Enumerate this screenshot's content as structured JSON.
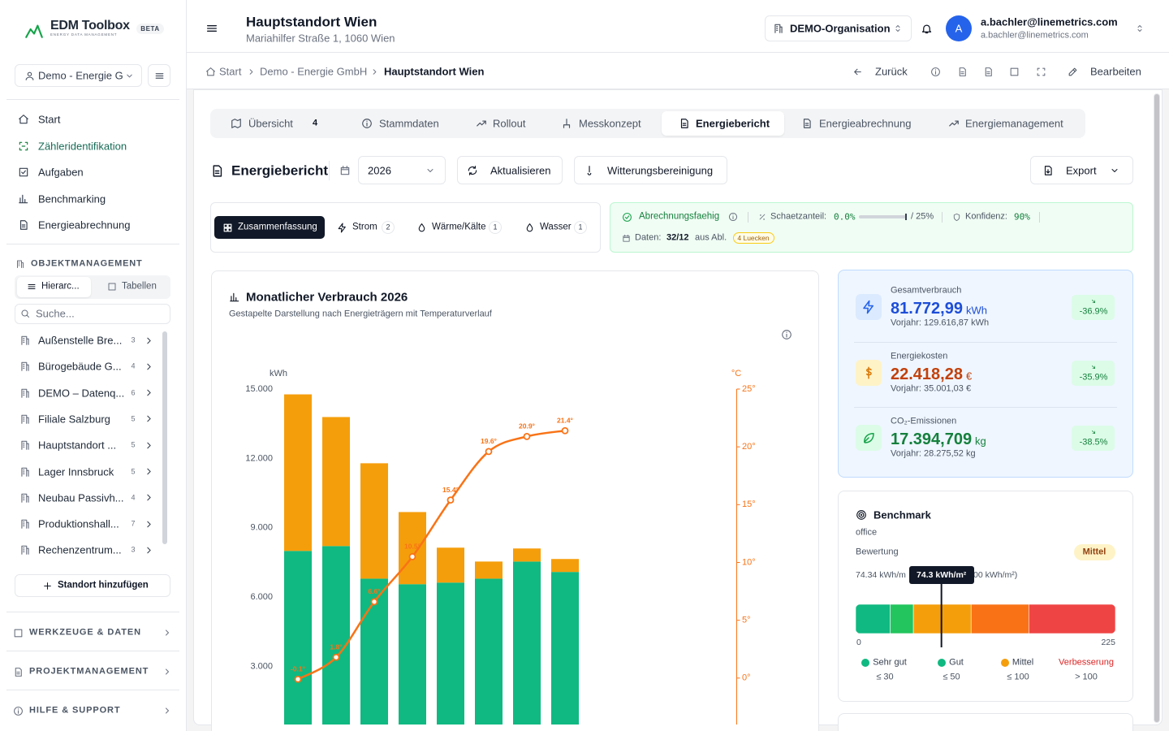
{
  "sidebar": {
    "logo": "EDM Toolbox",
    "logo_sub": "ENERGY DATA MANAGEMENT",
    "badge": "BETA",
    "org_select": "Demo - Energie G",
    "nav": [
      "Start",
      "Zähleridentifikation",
      "Aufgaben",
      "Benchmarking",
      "Energieabrechnung"
    ],
    "objekt_heading": "OBJEKTMANAGEMENT",
    "view_tabs": [
      "Hierarc...",
      "Tabellen"
    ],
    "search_placeholder": "Suche...",
    "sites": [
      {
        "name": "Außenstelle Bre...",
        "count": 3
      },
      {
        "name": "Bürogebäude G...",
        "count": 4
      },
      {
        "name": "DEMO – Datenq...",
        "count": 6
      },
      {
        "name": "Filiale Salzburg",
        "count": 5
      },
      {
        "name": "Hauptstandort ...",
        "count": 5
      },
      {
        "name": "Lager Innsbruck",
        "count": 5
      },
      {
        "name": "Neubau Passivh...",
        "count": 4
      },
      {
        "name": "Produktionshall...",
        "count": 7
      },
      {
        "name": "Rechenzentrum...",
        "count": 3
      }
    ],
    "add_site": "Standort hinzufügen",
    "sections": [
      "WERKZEUGE & DATEN",
      "PROJEKTMANAGEMENT",
      "HILFE & SUPPORT"
    ]
  },
  "header": {
    "title": "Hauptstandort Wien",
    "address": "Mariahilfer Straße 1, 1060 Wien",
    "org": "DEMO-Organisation",
    "avatar": "A",
    "user_name": "a.bachler@linemetrics.com",
    "user_email": "a.bachler@linemetrics.com"
  },
  "breadcrumb": [
    "Start",
    "Demo - Energie GmbH",
    "Hauptstandort Wien"
  ],
  "actions": {
    "back": "Zurück",
    "edit": "Bearbeiten"
  },
  "tabs": [
    {
      "label": "Übersicht",
      "count": 4
    },
    {
      "label": "Stammdaten"
    },
    {
      "label": "Rollout"
    },
    {
      "label": "Messkonzept"
    },
    {
      "label": "Energiebericht"
    },
    {
      "label": "Energieabrechnung"
    },
    {
      "label": "Energiemanagement"
    }
  ],
  "report": {
    "title": "Energiebericht",
    "year": "2026",
    "refresh": "Aktualisieren",
    "weather": "Witterungsbereinigung",
    "export": "Export"
  },
  "filters": [
    {
      "label": "Zusammenfassung"
    },
    {
      "label": "Strom",
      "count": 2
    },
    {
      "label": "Wärme/Kälte",
      "count": 1
    },
    {
      "label": "Wasser",
      "count": 1
    }
  ],
  "status": {
    "billing": "Abrechnungsfaehig",
    "estimate_label": "Schaetzanteil:",
    "estimate": "0.0%",
    "estimate_max": "/ 25%",
    "confidence_label": "Konfidenz:",
    "confidence": "90%",
    "data_label": "Daten:",
    "data_value": "32/12",
    "data_suffix": "aus Abl.",
    "gaps": "4 Luecken"
  },
  "chart_data": {
    "type": "bar",
    "title": "Monatlicher Verbrauch 2026",
    "subtitle": "Gestapelte Darstellung nach Energieträgern mit Temperaturverlauf",
    "y_label": "kWh",
    "y2_label": "°C",
    "stacked": true,
    "grid": false,
    "categories": [
      null,
      null,
      null,
      null,
      null,
      null,
      null,
      null,
      null,
      null,
      null,
      null
    ],
    "series": [
      {
        "color": "#10b981",
        "values": [
          8000,
          8210,
          6800,
          6560,
          6630,
          6800,
          7540,
          7090,
          null,
          null,
          null,
          null
        ]
      },
      {
        "color": "#f59e0b",
        "values": [
          6770,
          5580,
          4990,
          3120,
          1510,
          740,
          565,
          560,
          null,
          null,
          null,
          null
        ]
      },
      {
        "type": "line",
        "axis": "y2",
        "color": "#f97316",
        "values": [
          -0.1,
          1.8,
          6.6,
          10.5,
          15.4,
          19.6,
          20.9,
          21.4,
          null,
          null,
          null,
          null
        ],
        "value_labels": [
          "-0.1°",
          "1.8°",
          "6.6°",
          "10.5°",
          "15.4°",
          "19.6°",
          "20.9°",
          "21.4°",
          null,
          null,
          null,
          null
        ]
      }
    ],
    "ylim": [
      0,
      15000
    ],
    "yticks": [
      {
        "value": 3000,
        "label": "3.000"
      },
      {
        "value": 6000,
        "label": "6.000"
      },
      {
        "value": 9000,
        "label": "9.000"
      },
      {
        "value": 12000,
        "label": "12.000"
      },
      {
        "value": 15000,
        "label": "15.000"
      }
    ],
    "y2lim": [
      -5,
      25
    ],
    "y2ticks": [
      {
        "value": 0,
        "label": "0°"
      },
      {
        "value": 5,
        "label": "5°"
      },
      {
        "value": 10,
        "label": "10°"
      },
      {
        "value": 15,
        "label": "15°"
      },
      {
        "value": 20,
        "label": "20°"
      },
      {
        "value": 25,
        "label": "25°"
      }
    ]
  },
  "kpis": [
    {
      "label": "Gesamtverbrauch",
      "value": "81.772,99",
      "unit": "kWh",
      "prev": "Vorjahr: 129.616,87 kWh",
      "change": "-36.9%",
      "color": "#1d4ed8"
    },
    {
      "label": "Energiekosten",
      "value": "22.418,28",
      "unit": "€",
      "prev": "Vorjahr: 35.001,03 €",
      "change": "-35.9%",
      "color": "#c2410c"
    },
    {
      "label": "CO₂-Emissionen",
      "value": "17.394,709",
      "unit": "kg",
      "prev": "Vorjahr: 28.275,52 kg",
      "change": "-38.5%",
      "color": "#15803d"
    }
  ],
  "benchmark": {
    "title": "Benchmark",
    "type": "office",
    "rating_label": "Bewertung",
    "rating": "Mittel",
    "range_left": "74.34 kWh/m",
    "range_right": "00 kWh/m²)",
    "marker": {
      "value": 74.3,
      "label": "74.3 kWh/m²"
    },
    "scale": [
      0,
      225
    ],
    "bands": [
      {
        "to": 30,
        "color": "#10b981"
      },
      {
        "to": 50,
        "color": "#22c55e"
      },
      {
        "to": 100,
        "color": "#f59e0b"
      },
      {
        "to": 150,
        "color": "#f97316"
      },
      {
        "to": 225,
        "color": "#ef4444"
      }
    ],
    "legend": [
      {
        "label": "Sehr gut",
        "limit": "≤ 30",
        "color": "#10b981",
        "dot": true
      },
      {
        "label": "Gut",
        "limit": "≤ 50",
        "color": "#10b981",
        "dot": true
      },
      {
        "label": "Mittel",
        "limit": "≤ 100",
        "color": "#f59e0b",
        "dot": true
      },
      {
        "label": "Verbesserung",
        "limit": "> 100",
        "color": "#dc2626",
        "dot": false
      }
    ]
  }
}
